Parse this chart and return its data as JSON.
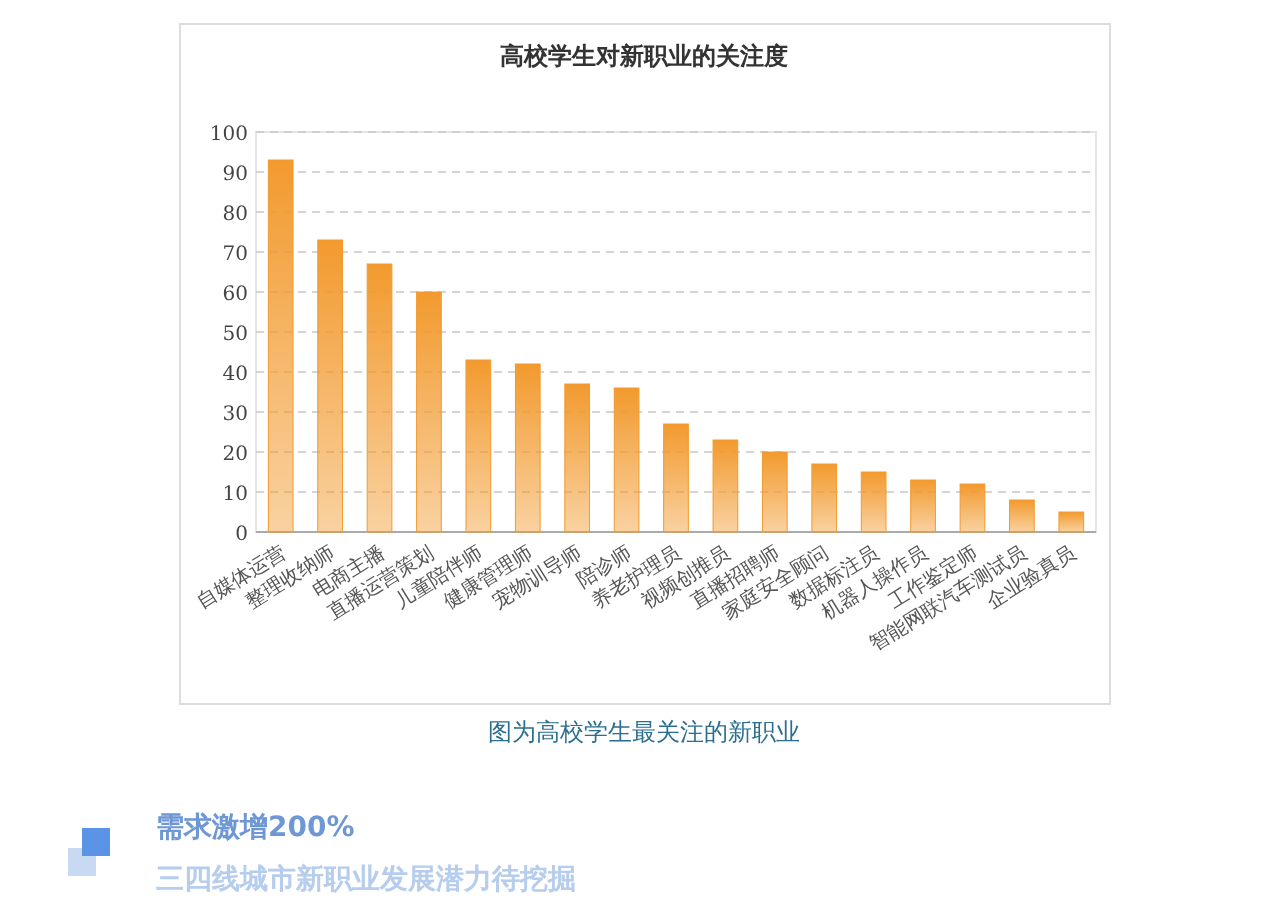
{
  "chart_data": {
    "type": "bar",
    "title": "高校学生对新职业的关注度",
    "categories": [
      "自媒体运营",
      "整理收纳师",
      "电商主播",
      "直播运营策划",
      "儿童陪伴师",
      "健康管理师",
      "宠物训导师",
      "陪诊师",
      "养老护理员",
      "视频创推员",
      "直播招聘师",
      "家庭安全顾问",
      "数据标注员",
      "机器人操作员",
      "工作鉴定师",
      "智能网联汽车测试员",
      "企业验真员"
    ],
    "values": [
      93,
      73,
      67,
      60,
      43,
      42,
      37,
      36,
      27,
      23,
      20,
      17,
      15,
      13,
      12,
      8,
      5
    ],
    "color": "#f29a2e",
    "ylim": [
      0,
      100
    ],
    "yticks": [
      0,
      10,
      20,
      30,
      40,
      50,
      60,
      70,
      80,
      90,
      100
    ],
    "grid": "y",
    "annotations": [
      "图为高校学生最关注的新职业",
      "需求激增200%",
      "三四线城市新职业发展潜力待挖掘"
    ]
  }
}
